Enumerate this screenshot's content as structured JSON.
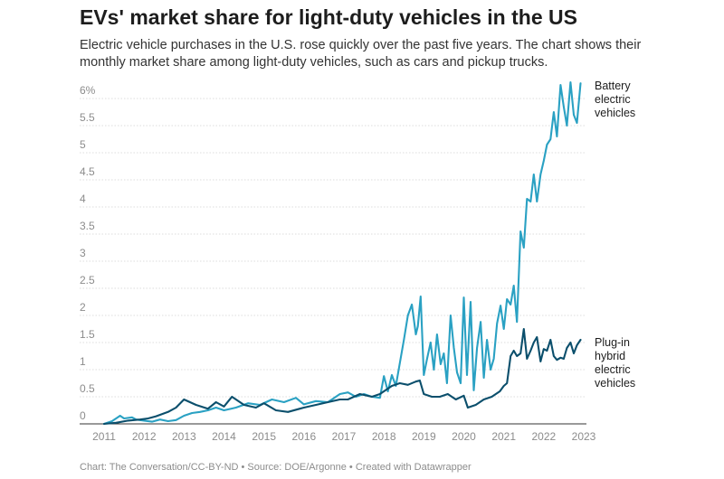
{
  "header": {
    "title": "EVs' market share for light-duty vehicles in the US",
    "subtitle": "Electric vehicle purchases in the U.S. rose quickly over the past five years. The chart shows their monthly market share among light-duty vehicles, such as cars and pickup trucks."
  },
  "footer": {
    "credit": "Chart: The Conversation/CC-BY-ND • Source: DOE/Argonne • Created with Datawrapper"
  },
  "chart_data": {
    "type": "line",
    "title": "EVs' market share for light-duty vehicles in the US",
    "xlabel": "",
    "ylabel": "",
    "x_range": [
      2011,
      2023
    ],
    "ylim": [
      0,
      6.4
    ],
    "x_ticks": [
      "2011",
      "2012",
      "2013",
      "2014",
      "2015",
      "2016",
      "2017",
      "2018",
      "2019",
      "2020",
      "2021",
      "2022",
      "2023"
    ],
    "y_ticks": [
      "0",
      "0.5",
      "1",
      "1.5",
      "2",
      "2.5",
      "3",
      "3.5",
      "4",
      "4.5",
      "5",
      "5.5",
      "6%"
    ],
    "grid": true,
    "series": [
      {
        "name": "Battery electric vehicles",
        "label_lines": [
          "Battery",
          "electric",
          "vehicles"
        ],
        "color": "#2aa1c3",
        "x": [
          2011.0,
          2011.2,
          2011.4,
          2011.5,
          2011.7,
          2011.8,
          2012.0,
          2012.2,
          2012.4,
          2012.6,
          2012.8,
          2013.0,
          2013.2,
          2013.4,
          2013.6,
          2013.8,
          2014.0,
          2014.3,
          2014.6,
          2014.9,
          2015.2,
          2015.5,
          2015.8,
          2016.0,
          2016.3,
          2016.6,
          2016.9,
          2017.1,
          2017.3,
          2017.5,
          2017.7,
          2017.9,
          2018.0,
          2018.1,
          2018.2,
          2018.3,
          2018.5,
          2018.6,
          2018.7,
          2018.8,
          2018.85,
          2018.92,
          2019.0,
          2019.08,
          2019.17,
          2019.25,
          2019.33,
          2019.42,
          2019.5,
          2019.58,
          2019.67,
          2019.75,
          2019.83,
          2019.92,
          2020.0,
          2020.08,
          2020.17,
          2020.25,
          2020.33,
          2020.42,
          2020.5,
          2020.58,
          2020.67,
          2020.75,
          2020.83,
          2020.92,
          2021.0,
          2021.08,
          2021.17,
          2021.25,
          2021.33,
          2021.42,
          2021.5,
          2021.58,
          2021.67,
          2021.75,
          2021.83,
          2021.92,
          2022.0,
          2022.08,
          2022.17,
          2022.25,
          2022.33,
          2022.42,
          2022.5,
          2022.58,
          2022.67,
          2022.75,
          2022.83,
          2022.92
        ],
        "values": [
          0.0,
          0.05,
          0.15,
          0.1,
          0.12,
          0.08,
          0.06,
          0.04,
          0.08,
          0.05,
          0.07,
          0.15,
          0.2,
          0.22,
          0.25,
          0.3,
          0.25,
          0.3,
          0.38,
          0.35,
          0.45,
          0.4,
          0.48,
          0.36,
          0.42,
          0.4,
          0.55,
          0.58,
          0.5,
          0.55,
          0.5,
          0.48,
          0.88,
          0.6,
          0.9,
          0.7,
          1.55,
          2.0,
          2.2,
          1.65,
          1.8,
          2.35,
          0.9,
          1.2,
          1.5,
          1.0,
          1.65,
          1.1,
          1.3,
          0.75,
          2.0,
          1.4,
          0.95,
          0.75,
          2.33,
          0.9,
          2.25,
          0.62,
          1.4,
          1.88,
          0.85,
          1.55,
          1.0,
          1.2,
          1.85,
          2.18,
          1.75,
          2.3,
          2.2,
          2.55,
          1.88,
          3.55,
          3.25,
          4.15,
          4.1,
          4.6,
          4.1,
          4.6,
          4.85,
          5.15,
          5.25,
          5.75,
          5.3,
          6.25,
          5.85,
          5.5,
          6.3,
          5.7,
          5.55,
          6.28
        ]
      },
      {
        "name": "Plug-in hybrid electric vehicles",
        "label_lines": [
          "Plug-in",
          "hybrid",
          "electric",
          "vehicles"
        ],
        "color": "#0b4f6c",
        "x": [
          2011.0,
          2011.3,
          2011.6,
          2011.9,
          2012.1,
          2012.3,
          2012.6,
          2012.8,
          2013.0,
          2013.3,
          2013.6,
          2013.8,
          2014.0,
          2014.2,
          2014.5,
          2014.8,
          2015.0,
          2015.3,
          2015.6,
          2015.9,
          2016.0,
          2016.3,
          2016.6,
          2016.9,
          2017.1,
          2017.4,
          2017.7,
          2017.9,
          2018.0,
          2018.2,
          2018.4,
          2018.6,
          2018.8,
          2018.9,
          2019.0,
          2019.2,
          2019.4,
          2019.6,
          2019.8,
          2020.0,
          2020.1,
          2020.3,
          2020.5,
          2020.7,
          2020.9,
          2021.0,
          2021.08,
          2021.17,
          2021.25,
          2021.33,
          2021.42,
          2021.5,
          2021.58,
          2021.67,
          2021.75,
          2021.83,
          2021.92,
          2022.0,
          2022.08,
          2022.17,
          2022.25,
          2022.33,
          2022.42,
          2022.5,
          2022.58,
          2022.67,
          2022.75,
          2022.83,
          2022.92
        ],
        "values": [
          0.0,
          0.02,
          0.06,
          0.08,
          0.1,
          0.14,
          0.22,
          0.3,
          0.45,
          0.35,
          0.28,
          0.4,
          0.32,
          0.5,
          0.35,
          0.3,
          0.38,
          0.25,
          0.22,
          0.28,
          0.3,
          0.35,
          0.4,
          0.45,
          0.45,
          0.55,
          0.5,
          0.55,
          0.6,
          0.7,
          0.75,
          0.72,
          0.78,
          0.8,
          0.55,
          0.5,
          0.5,
          0.55,
          0.45,
          0.52,
          0.3,
          0.35,
          0.45,
          0.5,
          0.6,
          0.7,
          0.75,
          1.25,
          1.35,
          1.25,
          1.3,
          1.75,
          1.2,
          1.35,
          1.5,
          1.6,
          1.15,
          1.38,
          1.35,
          1.55,
          1.25,
          1.18,
          1.22,
          1.2,
          1.4,
          1.5,
          1.3,
          1.45,
          1.55
        ]
      }
    ]
  }
}
